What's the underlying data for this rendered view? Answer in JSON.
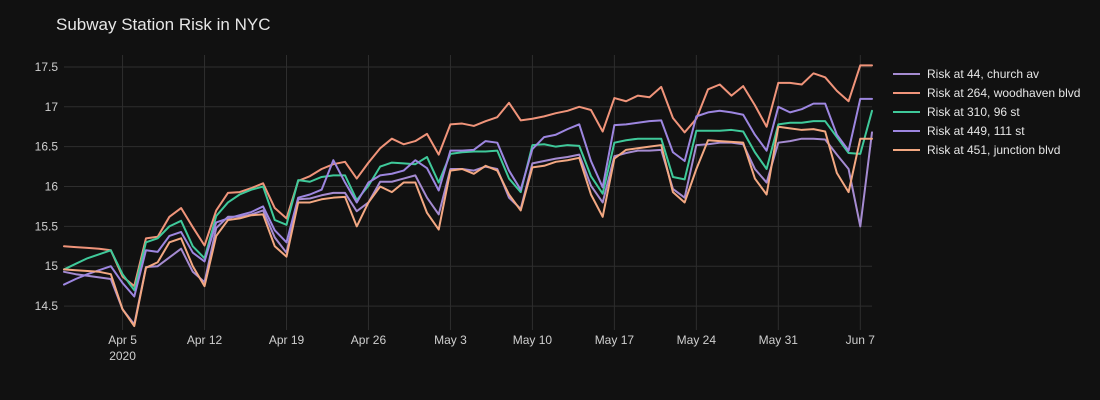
{
  "chart_data": {
    "type": "line",
    "title": "Subway Station Risk in NYC",
    "xlabel": "",
    "ylabel": "",
    "x_start": "2020-03-31",
    "x_end": "2020-06-08",
    "xlim": [
      "2020-03-31",
      "2020-06-08"
    ],
    "ylim": [
      14.2,
      17.65
    ],
    "x_ticks": [
      {
        "date": "2020-04-05",
        "label": "Apr 5",
        "sublabel": "2020"
      },
      {
        "date": "2020-04-12",
        "label": "Apr 12",
        "sublabel": ""
      },
      {
        "date": "2020-04-19",
        "label": "Apr 19",
        "sublabel": ""
      },
      {
        "date": "2020-04-26",
        "label": "Apr 26",
        "sublabel": ""
      },
      {
        "date": "2020-05-03",
        "label": "May 3",
        "sublabel": ""
      },
      {
        "date": "2020-05-10",
        "label": "May 10",
        "sublabel": ""
      },
      {
        "date": "2020-05-17",
        "label": "May 17",
        "sublabel": ""
      },
      {
        "date": "2020-05-24",
        "label": "May 24",
        "sublabel": ""
      },
      {
        "date": "2020-05-31",
        "label": "May 31",
        "sublabel": ""
      },
      {
        "date": "2020-06-07",
        "label": "Jun 7",
        "sublabel": ""
      }
    ],
    "y_ticks": [
      {
        "value": 14.5,
        "label": "14.5"
      },
      {
        "value": 15,
        "label": "15"
      },
      {
        "value": 15.5,
        "label": "15.5"
      },
      {
        "value": 16,
        "label": "16"
      },
      {
        "value": 16.5,
        "label": "16.5"
      },
      {
        "value": 17,
        "label": "17"
      },
      {
        "value": 17.5,
        "label": "17.5"
      }
    ],
    "grid": true,
    "legend_position": "right",
    "colors": {
      "background": "#111111",
      "grid": "#2e2e2e",
      "text": "#e6e6e6"
    },
    "series": [
      {
        "name": "Risk at 44, church av",
        "color": "#a58bd1",
        "values": [
          14.93,
          14.9,
          14.88,
          14.86,
          14.84,
          14.46,
          14.27,
          14.99,
          15.0,
          15.11,
          15.22,
          14.93,
          14.8,
          15.48,
          15.62,
          15.62,
          15.65,
          15.7,
          15.36,
          15.17,
          15.84,
          15.85,
          15.89,
          15.92,
          15.92,
          15.69,
          15.8,
          16.06,
          16.06,
          16.1,
          16.14,
          15.86,
          15.65,
          16.22,
          16.22,
          16.2,
          16.25,
          16.22,
          15.86,
          15.72,
          16.29,
          16.32,
          16.35,
          16.37,
          16.4,
          16.01,
          15.8,
          16.38,
          16.42,
          16.45,
          16.45,
          16.46,
          15.97,
          15.86,
          16.52,
          16.53,
          16.55,
          16.55,
          16.53,
          16.22,
          16.05,
          16.55,
          16.57,
          16.6,
          16.6,
          16.59,
          16.4,
          16.22,
          15.5,
          16.68
        ]
      },
      {
        "name": "Risk at 264, woodhaven blvd",
        "color": "#f0947a",
        "values": [
          15.25,
          15.24,
          15.23,
          15.22,
          15.2,
          14.87,
          14.75,
          15.35,
          15.37,
          15.62,
          15.73,
          15.49,
          15.26,
          15.7,
          15.92,
          15.93,
          15.98,
          16.04,
          15.73,
          15.6,
          16.07,
          16.13,
          16.22,
          16.28,
          16.31,
          16.1,
          16.3,
          16.48,
          16.6,
          16.53,
          16.57,
          16.66,
          16.4,
          16.78,
          16.79,
          16.76,
          16.82,
          16.87,
          17.05,
          16.83,
          16.85,
          16.88,
          16.92,
          16.95,
          17.0,
          16.96,
          16.69,
          17.11,
          17.07,
          17.14,
          17.12,
          17.25,
          16.86,
          16.68,
          16.85,
          17.22,
          17.28,
          17.14,
          17.26,
          17.02,
          16.75,
          17.3,
          17.3,
          17.28,
          17.42,
          17.37,
          17.2,
          17.07,
          17.52,
          17.52
        ]
      },
      {
        "name": "Risk at 310, 96 st",
        "color": "#3fc99a",
        "values": [
          14.96,
          15.03,
          15.1,
          15.15,
          15.2,
          14.9,
          14.7,
          15.3,
          15.35,
          15.5,
          15.57,
          15.25,
          15.1,
          15.63,
          15.8,
          15.9,
          15.96,
          16.0,
          15.58,
          15.52,
          16.08,
          16.06,
          16.12,
          16.14,
          16.14,
          15.83,
          16.01,
          16.25,
          16.3,
          16.29,
          16.28,
          16.37,
          16.05,
          16.41,
          16.43,
          16.44,
          16.44,
          16.45,
          16.1,
          15.93,
          16.52,
          16.53,
          16.5,
          16.52,
          16.51,
          16.13,
          15.91,
          16.55,
          16.58,
          16.6,
          16.6,
          16.6,
          16.12,
          16.09,
          16.7,
          16.7,
          16.7,
          16.71,
          16.69,
          16.43,
          16.22,
          16.78,
          16.8,
          16.8,
          16.82,
          16.82,
          16.62,
          16.42,
          16.41,
          16.95
        ]
      },
      {
        "name": "Risk at 449, 111 st",
        "color": "#9d86e0",
        "values": [
          14.77,
          14.84,
          14.9,
          14.95,
          15.0,
          14.79,
          14.62,
          15.2,
          15.18,
          15.38,
          15.43,
          15.17,
          15.06,
          15.55,
          15.6,
          15.64,
          15.68,
          15.75,
          15.45,
          15.3,
          15.86,
          15.9,
          15.96,
          16.33,
          16.05,
          15.8,
          16.05,
          16.14,
          16.16,
          16.2,
          16.33,
          16.23,
          15.95,
          16.45,
          16.45,
          16.46,
          16.57,
          16.55,
          16.2,
          15.96,
          16.47,
          16.62,
          16.65,
          16.72,
          16.78,
          16.32,
          15.99,
          16.77,
          16.78,
          16.8,
          16.82,
          16.83,
          16.43,
          16.32,
          16.88,
          16.93,
          16.95,
          16.93,
          16.9,
          16.65,
          16.45,
          17.0,
          16.93,
          16.97,
          17.04,
          17.04,
          16.65,
          16.45,
          17.1,
          17.1
        ]
      },
      {
        "name": "Risk at 451, junction blvd",
        "color": "#f3a882",
        "values": [
          14.96,
          14.95,
          14.94,
          14.93,
          14.9,
          14.46,
          14.25,
          14.98,
          15.05,
          15.3,
          15.35,
          15.0,
          14.75,
          15.38,
          15.58,
          15.6,
          15.64,
          15.65,
          15.25,
          15.12,
          15.8,
          15.8,
          15.84,
          15.86,
          15.87,
          15.5,
          15.8,
          16.0,
          15.93,
          16.05,
          16.05,
          15.67,
          15.46,
          16.2,
          16.22,
          16.16,
          16.26,
          16.2,
          15.9,
          15.7,
          16.24,
          16.26,
          16.31,
          16.33,
          16.36,
          15.9,
          15.62,
          16.35,
          16.46,
          16.48,
          16.5,
          16.52,
          15.93,
          15.8,
          16.22,
          16.58,
          16.57,
          16.56,
          16.55,
          16.1,
          15.9,
          16.75,
          16.73,
          16.71,
          16.72,
          16.69,
          16.17,
          15.93,
          16.6,
          16.6
        ]
      }
    ]
  }
}
